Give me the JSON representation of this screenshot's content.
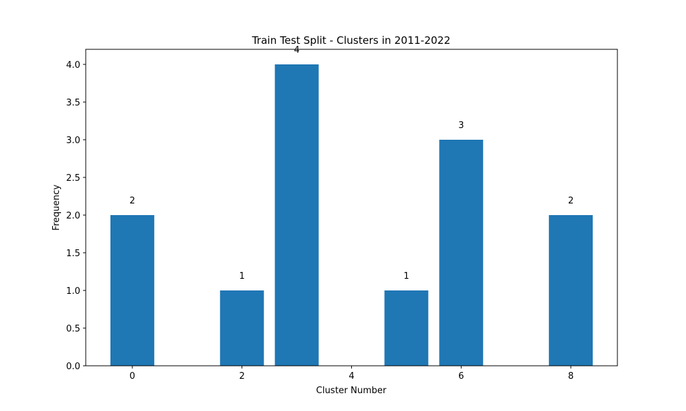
{
  "chart_data": {
    "type": "bar",
    "title": "Train Test Split - Clusters in 2011-2022",
    "xlabel": "Cluster Number",
    "ylabel": "Frequency",
    "x": [
      0,
      2,
      3,
      5,
      6,
      8
    ],
    "values": [
      2,
      1,
      4,
      1,
      3,
      2
    ],
    "data_labels": [
      "2",
      "1",
      "4",
      "1",
      "3",
      "2"
    ],
    "xlim": [
      -0.85,
      8.85
    ],
    "ylim": [
      0,
      4.2
    ],
    "x_ticks": [
      "0",
      "2",
      "4",
      "6",
      "8"
    ],
    "y_ticks": [
      "0.0",
      "0.5",
      "1.0",
      "1.5",
      "2.0",
      "2.5",
      "3.0",
      "3.5",
      "4.0"
    ],
    "bar_color": "#1f77b4",
    "grid": false,
    "legend": "none"
  }
}
